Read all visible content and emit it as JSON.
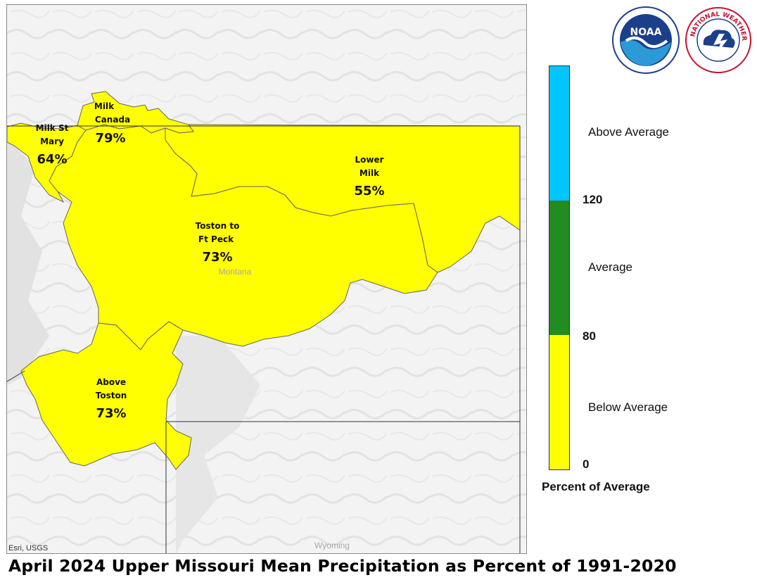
{
  "title": "April 2024 Upper Missouri Mean Precipitation as Percent of 1991-2020",
  "attribution": "Esri, USGS",
  "map": {
    "place_labels": {
      "montana": "Montana",
      "wyoming": "Wyoming"
    },
    "basins": [
      {
        "id": "milk-st-mary",
        "name_lines": [
          "Milk St",
          "Mary"
        ],
        "percent": "64%",
        "value": 64,
        "category": "Below Average"
      },
      {
        "id": "milk-canada",
        "name_lines": [
          "Milk",
          "Canada"
        ],
        "percent": "79%",
        "value": 79,
        "category": "Below Average"
      },
      {
        "id": "lower-milk",
        "name_lines": [
          "Lower",
          "Milk"
        ],
        "percent": "55%",
        "value": 55,
        "category": "Below Average"
      },
      {
        "id": "toston-to-ft-peck",
        "name_lines": [
          "Toston to",
          "Ft Peck"
        ],
        "percent": "73%",
        "value": 73,
        "category": "Below Average"
      },
      {
        "id": "above-toston",
        "name_lines": [
          "Above",
          "Toston"
        ],
        "percent": "73%",
        "value": 73,
        "category": "Below Average"
      }
    ]
  },
  "legend": {
    "title": "Percent of Average",
    "classes": [
      {
        "label": "Above Average",
        "color": "#00c5ff",
        "range": [
          120,
          null
        ]
      },
      {
        "label": "Average",
        "color": "#228b22",
        "range": [
          80,
          120
        ]
      },
      {
        "label": "Below Average",
        "color": "#ffff00",
        "range": [
          0,
          80
        ]
      }
    ],
    "ticks": [
      "120",
      "80",
      "0"
    ]
  },
  "colors": {
    "below_average": "#ffff00",
    "basin_outline": "#555555",
    "state_border": "#333333"
  },
  "logos": {
    "noaa": "NOAA",
    "nws": "NATIONAL WEATHER SERVICE"
  }
}
